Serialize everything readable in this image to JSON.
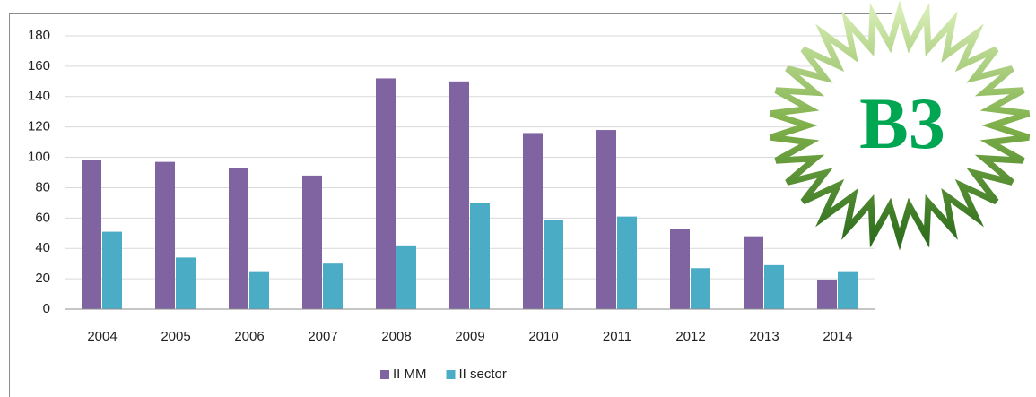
{
  "chart_data": {
    "type": "bar",
    "categories": [
      "2004",
      "2005",
      "2006",
      "2007",
      "2008",
      "2009",
      "2010",
      "2011",
      "2012",
      "2013",
      "2014"
    ],
    "series": [
      {
        "name": "II MM",
        "color": "#8064a2",
        "values": [
          98,
          97,
          93,
          88,
          152,
          150,
          116,
          118,
          53,
          48,
          19
        ]
      },
      {
        "name": "II sector",
        "color": "#4bacc6",
        "values": [
          51,
          34,
          25,
          30,
          42,
          70,
          59,
          61,
          27,
          29,
          25
        ]
      }
    ],
    "ylim": [
      0,
      180
    ],
    "yticks": [
      0,
      20,
      40,
      60,
      80,
      100,
      120,
      140,
      160,
      180
    ],
    "grid": true,
    "legend": "bottom"
  },
  "badge": {
    "label": "B3"
  }
}
